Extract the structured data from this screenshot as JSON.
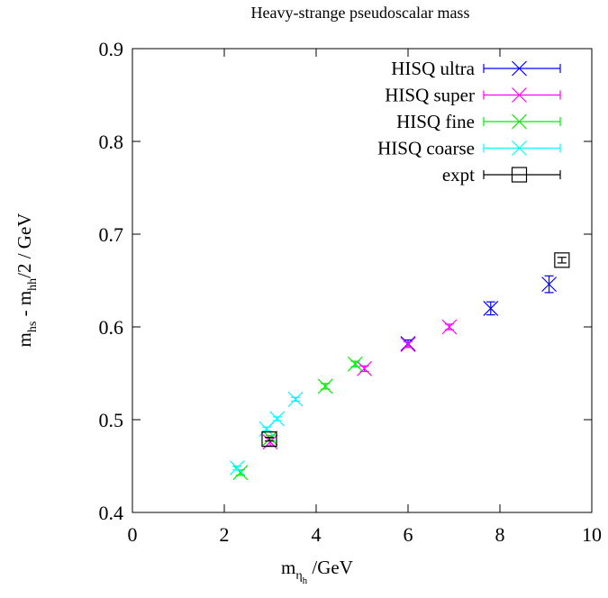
{
  "chart_data": {
    "type": "scatter",
    "title": "Heavy-strange pseudoscalar mass",
    "xlabel": {
      "main": "m",
      "sub": "η",
      "subsub": "h",
      "rest": " /GeV"
    },
    "ylabel": {
      "p1": "m",
      "s1": "hs",
      "p2": " - m",
      "s2": "hh",
      "p3": "/2 / GeV"
    },
    "xlim": [
      0,
      10
    ],
    "ylim": [
      0.4,
      0.9
    ],
    "xticks": [
      0,
      2,
      4,
      6,
      8,
      10
    ],
    "yticks": [
      0.4,
      0.5,
      0.6,
      0.7,
      0.8,
      0.9
    ],
    "xtick_labels": [
      "0",
      "2",
      "4",
      "6",
      "8",
      "10"
    ],
    "ytick_labels": [
      "0.4",
      "0.5",
      "0.6",
      "0.7",
      "0.8",
      "0.9"
    ],
    "grid": false,
    "legend_position": "top-right",
    "series": [
      {
        "name": "HISQ ultra",
        "color": "#0000ff",
        "marker": "x",
        "points": [
          [
            6.0,
            0.582,
            0.004
          ],
          [
            7.8,
            0.62,
            0.007
          ],
          [
            9.07,
            0.646,
            0.009
          ]
        ]
      },
      {
        "name": "HISQ super",
        "color": "#ff00ff",
        "marker": "x",
        "points": [
          [
            3.0,
            0.476,
            0.004
          ],
          [
            5.05,
            0.555,
            0.003
          ],
          [
            6.0,
            0.581,
            0.003
          ],
          [
            6.9,
            0.6,
            0.003
          ]
        ]
      },
      {
        "name": "HISQ fine",
        "color": "#00ee00",
        "marker": "x",
        "points": [
          [
            2.35,
            0.443,
            0.003
          ],
          [
            3.0,
            0.48,
            0.003
          ],
          [
            4.2,
            0.536,
            0.003
          ],
          [
            4.85,
            0.56,
            0.003
          ]
        ]
      },
      {
        "name": "HISQ coarse",
        "color": "#00ffff",
        "marker": "x",
        "points": [
          [
            2.28,
            0.448,
            0.002
          ],
          [
            2.92,
            0.49,
            0.002
          ],
          [
            3.15,
            0.501,
            0.002
          ],
          [
            3.55,
            0.522,
            0.002
          ]
        ]
      },
      {
        "name": "expt",
        "color": "#000000",
        "marker": "square",
        "points": [
          [
            2.98,
            0.479,
            0.002
          ],
          [
            9.35,
            0.672,
            0.003
          ]
        ]
      }
    ]
  }
}
